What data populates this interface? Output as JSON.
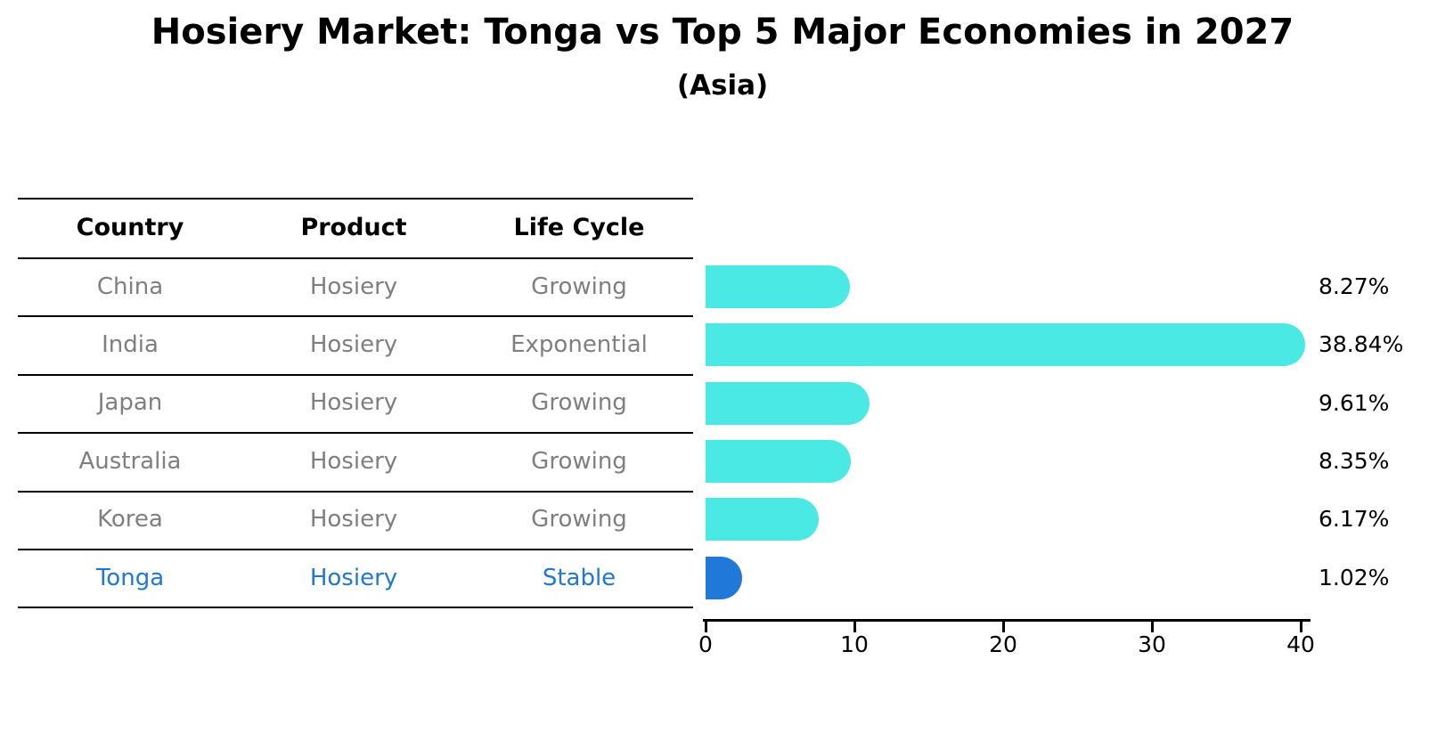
{
  "title": "Hosiery Market: Tonga vs Top 5 Major Economies in 2027",
  "subtitle": "(Asia)",
  "table": {
    "headers": [
      "Country",
      "Product",
      "Life Cycle"
    ],
    "rows": [
      {
        "country": "China",
        "product": "Hosiery",
        "life_cycle": "Growing",
        "highlight": false
      },
      {
        "country": "India",
        "product": "Hosiery",
        "life_cycle": "Exponential",
        "highlight": false
      },
      {
        "country": "Japan",
        "product": "Hosiery",
        "life_cycle": "Growing",
        "highlight": false
      },
      {
        "country": "Australia",
        "product": "Hosiery",
        "life_cycle": "Growing",
        "highlight": false
      },
      {
        "country": "Korea",
        "product": "Hosiery",
        "life_cycle": "Growing",
        "highlight": false
      },
      {
        "country": "Tonga",
        "product": "Hosiery",
        "life_cycle": "Stable",
        "highlight": true
      }
    ]
  },
  "chart_data": {
    "type": "bar",
    "orientation": "horizontal",
    "categories": [
      "China",
      "India",
      "Japan",
      "Australia",
      "Korea",
      "Tonga"
    ],
    "values": [
      8.27,
      38.84,
      9.61,
      8.35,
      6.17,
      1.02
    ],
    "value_labels": [
      "8.27%",
      "38.84%",
      "9.61%",
      "8.35%",
      "6.17%",
      "1.02%"
    ],
    "highlight_index": 5,
    "x_ticks": [
      "0",
      "10",
      "20",
      "30",
      "40"
    ],
    "x_tick_values": [
      0,
      10,
      20,
      30,
      40
    ],
    "xlim": [
      0,
      40
    ],
    "grid": false,
    "legend": "none",
    "xlabel": "",
    "ylabel": ""
  },
  "colors": {
    "bar_default": "#4BE9E4",
    "bar_highlight": "#2078D8",
    "row_text": "#7F7F7F",
    "highlight_text": "#2177D2",
    "header_text": "#000000",
    "axis": "#000000",
    "background": "#FFFFFF"
  }
}
